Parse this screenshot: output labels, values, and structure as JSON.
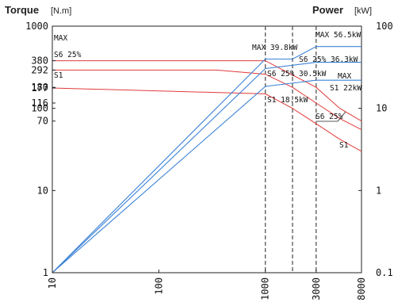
{
  "chart_data": {
    "type": "line",
    "title": "",
    "left_axis": {
      "title": "Torque",
      "unit": "[N.m]",
      "scale": "log",
      "range": [
        1,
        1000
      ],
      "ticks": [
        1,
        10,
        70,
        100,
        116,
        177,
        180,
        292,
        380,
        1000
      ]
    },
    "right_axis": {
      "title": "Power",
      "unit": "[kW]",
      "scale": "log",
      "range": [
        0.1,
        100
      ],
      "ticks": [
        "0.1",
        "1",
        "10",
        "100"
      ]
    },
    "x_axis": {
      "scale": "log",
      "range": [
        10,
        8000
      ],
      "ticks": [
        "10",
        "100",
        "1000",
        "3000",
        "8000"
      ]
    },
    "reference_lines_x": [
      1000,
      1800,
      3000
    ],
    "torque_series": [
      {
        "name": "MAX",
        "color": "#e23a3a",
        "points": [
          [
            10,
            380
          ],
          [
            1000,
            380
          ],
          [
            3000,
            180
          ],
          [
            5000,
            100
          ],
          [
            8000,
            70
          ]
        ]
      },
      {
        "name": "S6 25%",
        "color": "#e23a3a",
        "points": [
          [
            10,
            292
          ],
          [
            350,
            292
          ],
          [
            1000,
            260
          ],
          [
            1800,
            180
          ],
          [
            3000,
            116
          ],
          [
            5000,
            75
          ],
          [
            8000,
            55
          ]
        ]
      },
      {
        "name": "S1",
        "color": "#e23a3a",
        "points": [
          [
            10,
            177
          ],
          [
            1000,
            150
          ],
          [
            1800,
            100
          ],
          [
            3000,
            65
          ],
          [
            5000,
            42
          ],
          [
            8000,
            30
          ]
        ]
      }
    ],
    "power_series": [
      {
        "name": "MAX",
        "color": "#3b82d6",
        "points": [
          [
            10,
            0.1
          ],
          [
            1000,
            39.8
          ],
          [
            1800,
            39.8
          ],
          [
            3000,
            56.5
          ],
          [
            8000,
            56.5
          ]
        ]
      },
      {
        "name": "S6 25%",
        "color": "#3b82d6",
        "points": [
          [
            10,
            0.1
          ],
          [
            1000,
            30.5
          ],
          [
            3000,
            36.3
          ],
          [
            8000,
            36.3
          ]
        ]
      },
      {
        "name": "S1",
        "color": "#3b82d6",
        "points": [
          [
            10,
            0.1
          ],
          [
            1000,
            18.5
          ],
          [
            3000,
            22
          ],
          [
            8000,
            22
          ]
        ]
      }
    ],
    "annotations": {
      "left_max": "MAX",
      "left_s6": "S6 25%",
      "left_s1": "S1",
      "p_max_1000": "MAX 39.8kW",
      "p_s6_1000": "S6 25% 30.5kW",
      "p_s1_1000": "S1 18.5kW",
      "p_max_3000": "MAX 56.5kW",
      "p_s6_3000": "S6 25% 36.3kW",
      "p_max_3000b": "MAX",
      "p_s1_3000": "S1 22kW",
      "torque_s6": "S6 25%",
      "torque_s1": "S1"
    }
  }
}
